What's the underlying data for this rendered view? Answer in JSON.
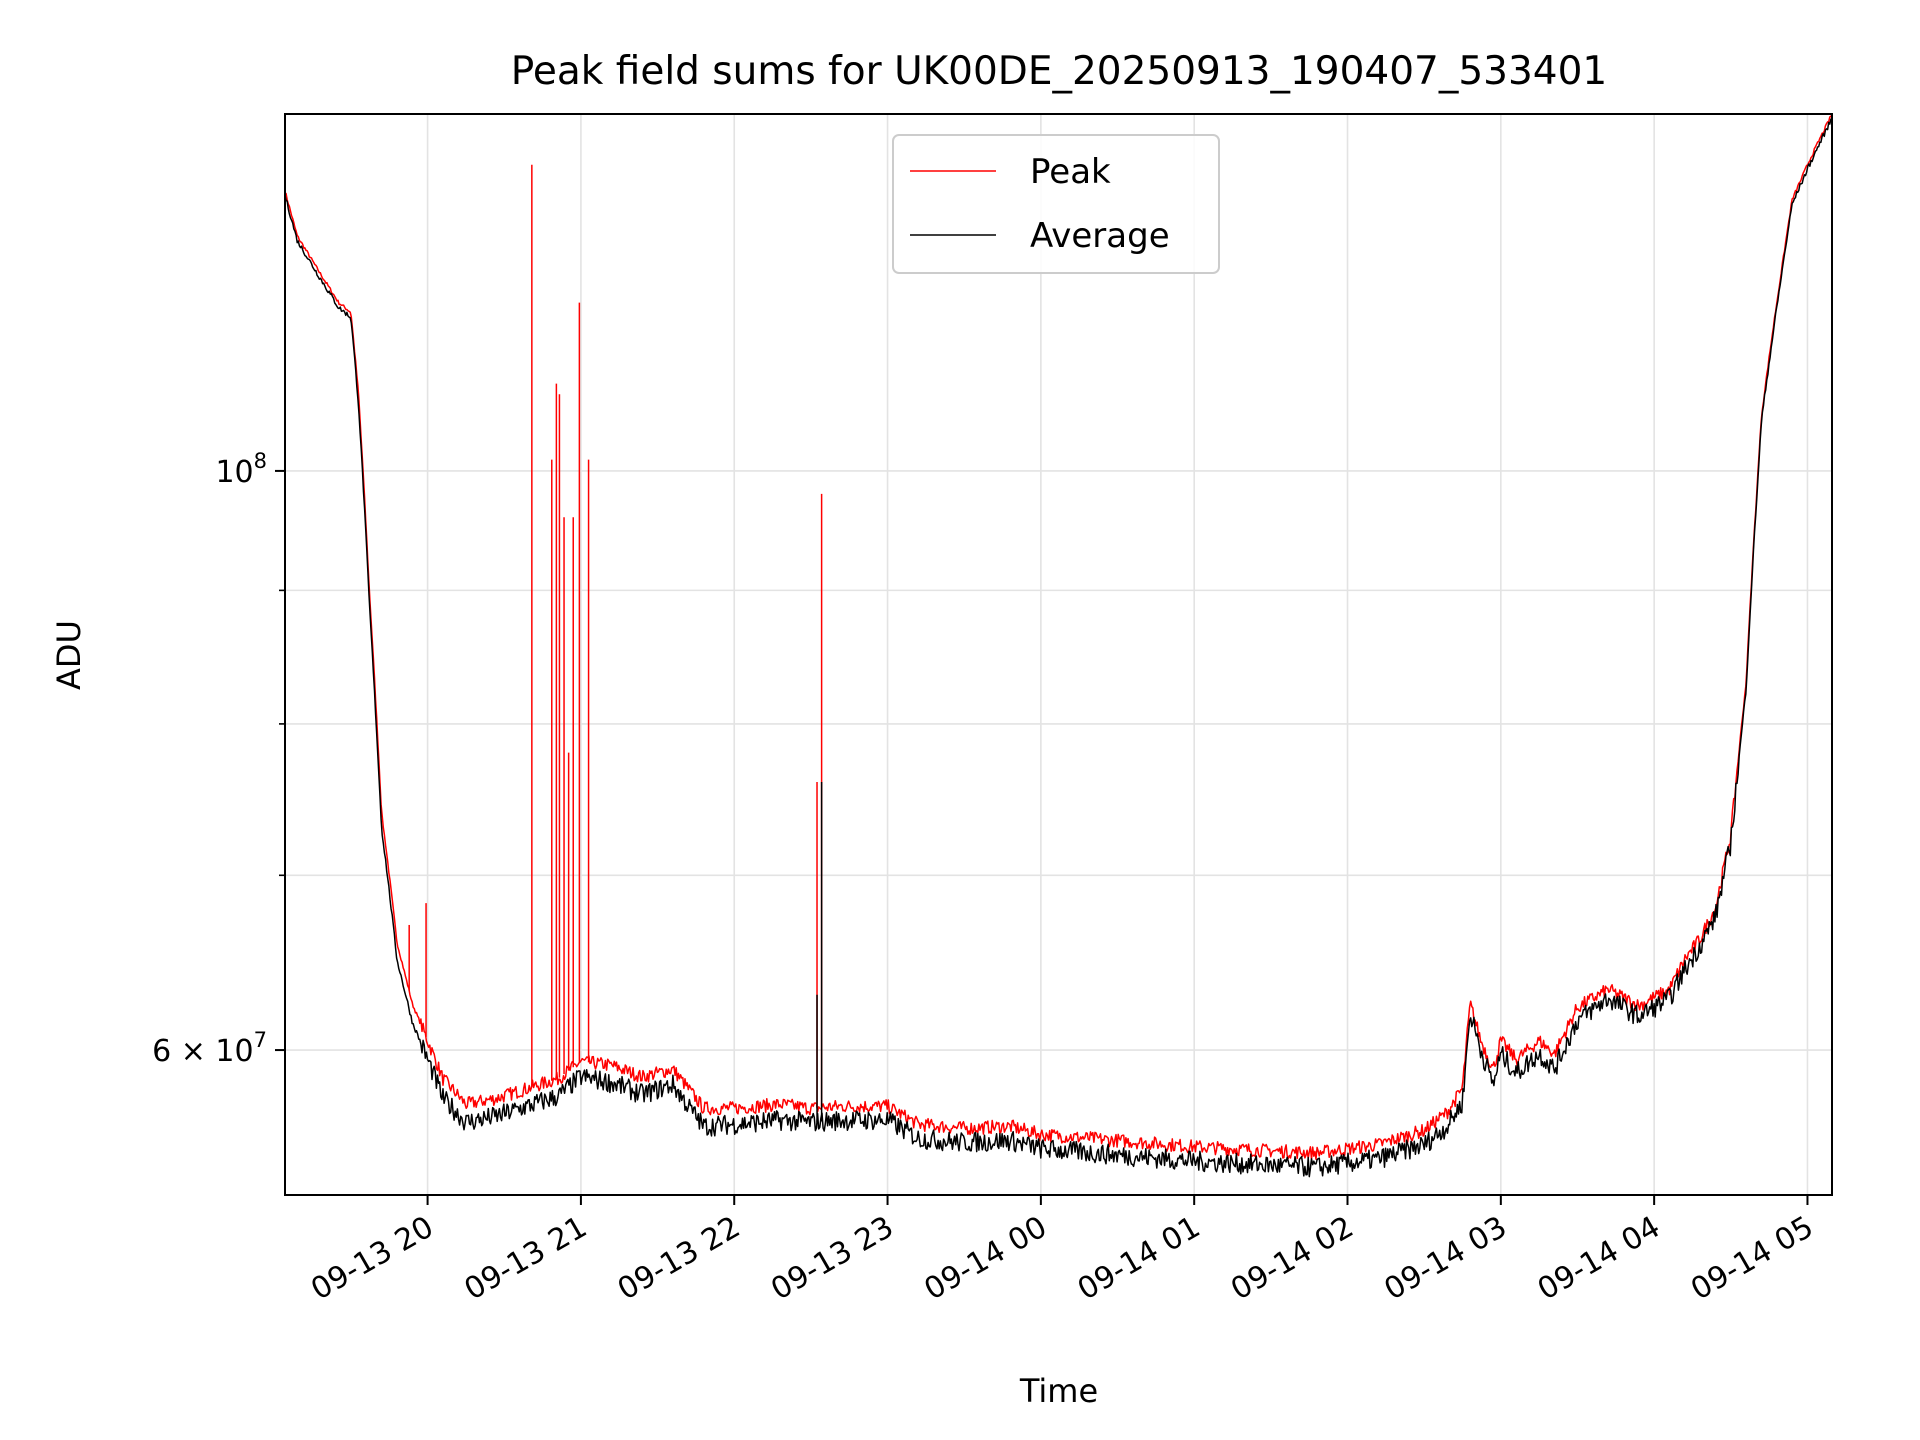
{
  "chart_data": {
    "type": "line",
    "title": "Peak field sums for UK00DE_20250913_190407_533401",
    "xlabel": "Time",
    "ylabel": "ADU",
    "yscale": "log",
    "grid": true,
    "legend_position": "top-center",
    "xlim": [
      19.07,
      29.16
    ],
    "ylim": [
      52800000,
      137000000
    ],
    "x_ticks": [
      {
        "value": 20,
        "label": "09-13 20"
      },
      {
        "value": 21,
        "label": "09-13 21"
      },
      {
        "value": 22,
        "label": "09-13 22"
      },
      {
        "value": 23,
        "label": "09-13 23"
      },
      {
        "value": 24,
        "label": "09-14 00"
      },
      {
        "value": 25,
        "label": "09-14 01"
      },
      {
        "value": 26,
        "label": "09-14 02"
      },
      {
        "value": 27,
        "label": "09-14 03"
      },
      {
        "value": 28,
        "label": "09-14 04"
      },
      {
        "value": 29,
        "label": "09-14 05"
      }
    ],
    "y_major_ticks": [
      {
        "value": 60000000,
        "base": "6 × 10",
        "exp": "7"
      },
      {
        "value": 100000000,
        "base": "10",
        "exp": "8"
      }
    ],
    "y_minor_ticks": [
      70000000,
      80000000,
      90000000
    ],
    "series": [
      {
        "name": "Peak",
        "color": "#ff0000",
        "x": [
          19.07,
          19.15,
          19.3,
          19.42,
          19.5,
          19.55,
          19.62,
          19.7,
          19.8,
          19.9,
          20.0,
          20.1,
          20.25,
          20.45,
          20.65,
          20.85,
          21.0,
          21.2,
          21.4,
          21.6,
          21.7,
          21.8,
          22.0,
          22.3,
          22.5,
          22.7,
          23.0,
          23.2,
          23.5,
          23.8,
          24.0,
          24.5,
          25.0,
          25.5,
          25.8,
          26.0,
          26.2,
          26.5,
          26.65,
          26.75,
          26.8,
          26.87,
          26.95,
          27.0,
          27.1,
          27.25,
          27.35,
          27.5,
          27.7,
          27.9,
          28.1,
          28.2,
          28.3,
          28.4,
          28.5,
          28.6,
          28.7,
          28.9,
          29.0,
          29.16
        ],
        "y": [
          128000000,
          123000000,
          119000000,
          116000000,
          115000000,
          107000000,
          90000000,
          74000000,
          66000000,
          62500000,
          60500000,
          58500000,
          57200000,
          57500000,
          58000000,
          58500000,
          59400000,
          59200000,
          58600000,
          59000000,
          58000000,
          57000000,
          57000000,
          57200000,
          57000000,
          57100000,
          57100000,
          56200000,
          56000000,
          56100000,
          55700000,
          55400000,
          55100000,
          54900000,
          54800000,
          55000000,
          55200000,
          55900000,
          56800000,
          58000000,
          62500000,
          60500000,
          59000000,
          60500000,
          59500000,
          60500000,
          59800000,
          62300000,
          63300000,
          62400000,
          63300000,
          65000000,
          66200000,
          68000000,
          72500000,
          83000000,
          105000000,
          127000000,
          131000000,
          137000000
        ],
        "spikes": [
          {
            "x": 19.88,
            "y": 67000000
          },
          {
            "x": 19.99,
            "y": 68300000
          },
          {
            "x": 20.68,
            "y": 131000000
          },
          {
            "x": 20.81,
            "y": 101000000
          },
          {
            "x": 20.84,
            "y": 108000000
          },
          {
            "x": 20.86,
            "y": 107000000
          },
          {
            "x": 20.89,
            "y": 96000000
          },
          {
            "x": 20.92,
            "y": 78000000
          },
          {
            "x": 20.95,
            "y": 96000000
          },
          {
            "x": 20.99,
            "y": 116000000
          },
          {
            "x": 21.05,
            "y": 101000000
          },
          {
            "x": 22.54,
            "y": 76000000
          },
          {
            "x": 22.57,
            "y": 98000000
          }
        ]
      },
      {
        "name": "Average",
        "color": "#000000",
        "x": [
          19.07,
          19.15,
          19.3,
          19.42,
          19.5,
          19.55,
          19.62,
          19.7,
          19.8,
          19.9,
          20.0,
          20.1,
          20.25,
          20.45,
          20.65,
          20.85,
          21.0,
          21.2,
          21.4,
          21.6,
          21.7,
          21.8,
          22.0,
          22.3,
          22.5,
          22.7,
          23.0,
          23.2,
          23.5,
          23.8,
          24.0,
          24.5,
          25.0,
          25.5,
          25.8,
          26.0,
          26.2,
          26.5,
          26.65,
          26.75,
          26.8,
          26.87,
          26.95,
          27.0,
          27.1,
          27.25,
          27.35,
          27.5,
          27.7,
          27.9,
          28.1,
          28.2,
          28.3,
          28.4,
          28.5,
          28.6,
          28.7,
          28.9,
          29.0,
          29.16
        ],
        "y": [
          127500000,
          122500000,
          118500000,
          115500000,
          114500000,
          106000000,
          89000000,
          73000000,
          65000000,
          61500000,
          59500000,
          57500000,
          56300000,
          56600000,
          57100000,
          57600000,
          58600000,
          58300000,
          57700000,
          58200000,
          57100000,
          56100000,
          56200000,
          56400000,
          56300000,
          56400000,
          56400000,
          55500000,
          55300000,
          55400000,
          55000000,
          54700000,
          54400000,
          54200000,
          54100000,
          54300000,
          54500000,
          55200000,
          56100000,
          57300000,
          62000000,
          60000000,
          58200000,
          59800000,
          58800000,
          59800000,
          59000000,
          61600000,
          62800000,
          61800000,
          62800000,
          64400000,
          65800000,
          67500000,
          72000000,
          82500000,
          104500000,
          126500000,
          130500000,
          136500000
        ],
        "spikes": [
          {
            "x": 22.54,
            "y": 63000000
          },
          {
            "x": 22.57,
            "y": 76000000
          }
        ]
      }
    ]
  }
}
